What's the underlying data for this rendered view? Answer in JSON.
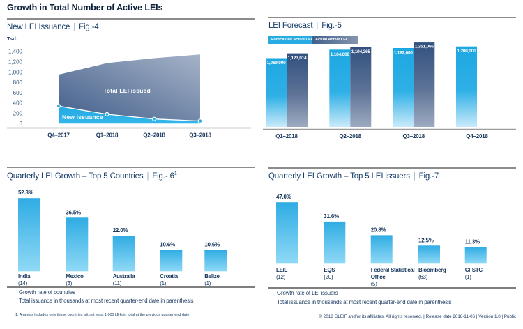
{
  "page_title": "Growth in Total Number of Active LEIs",
  "footer_text": "© 2018 GLEIF and/or its affiliates. All rights reserved. | Release date 2018-11-06 | Version 1.0 | Public",
  "colors": {
    "accent_cyan": "#29ABE2",
    "dark_navy_bar": "#31507E",
    "text_navy": "#16365C",
    "divider_gray": "#8C8C8C"
  },
  "chart_data": [
    {
      "id": "fig4",
      "type": "area",
      "title": "New LEI Issuance",
      "sep": "|",
      "fig": "Fig.-4",
      "ylabel": "Tsd.",
      "ylim": [
        0,
        1400
      ],
      "y_ticks": [
        "1,400",
        "1,200",
        "1,000",
        "800",
        "600",
        "400",
        "200",
        "0"
      ],
      "x": [
        "Q4–2017",
        "Q1–2018",
        "Q2–2018",
        "Q3–2018"
      ],
      "series": [
        {
          "name": "Total LEI issued",
          "values": [
            950,
            1175,
            1270,
            1340
          ]
        },
        {
          "name": "New issuance",
          "values": [
            340,
            180,
            90,
            50
          ]
        }
      ],
      "grid": false,
      "unit_note": "values in thousands (Tsd.)"
    },
    {
      "id": "fig5",
      "type": "bar",
      "title": "LEI Forecast",
      "sep": "|",
      "fig": "Fig.-5",
      "x": [
        "Q1–2018",
        "Q2–2018",
        "Q3–2018",
        "Q4–2018"
      ],
      "legend": [
        "Forecasted Active LEI",
        "Actual Active LEI"
      ],
      "series": [
        {
          "name": "Forecasted Active LEI",
          "values": [
            1069000,
            1164000,
            1182000,
            1200000
          ],
          "labels": [
            "1,069,000",
            "1,164,000",
            "1,182,000",
            "1,200,000"
          ]
        },
        {
          "name": "Actual Active LEI",
          "values": [
            1123014,
            1194265,
            1251066,
            null
          ],
          "labels": [
            "1,123,014",
            "1,194,265",
            "1,251,066",
            null
          ]
        }
      ],
      "grid": false
    },
    {
      "id": "fig6",
      "type": "bar",
      "title": "Quarterly LEI Growth – Top 5 Countries",
      "sep": "|",
      "fig": "Fig.- 6",
      "fig_sup": "1",
      "categories": [
        "India",
        "Mexico",
        "Australia",
        "Croatia",
        "Belize"
      ],
      "counts": [
        "(14)",
        "(3)",
        "(11)",
        "(1)",
        "(1)"
      ],
      "values": [
        52.3,
        36.5,
        22.0,
        10.6,
        10.6
      ],
      "value_labels": [
        "52.3%",
        "36.5%",
        "22.0%",
        "10.6%",
        "10.6%"
      ],
      "caption1": "Growth rate of countries",
      "caption2": "Total issuance in thousands at most recent quarter-end date in parenthesis",
      "footnote": "1. Analysis includes only those countries with at least 1,000 LEIs in total at the previous quarter-end date",
      "grid": false
    },
    {
      "id": "fig7",
      "type": "bar",
      "title": "Quarterly LEI Growth – Top 5 LEI issuers",
      "sep": "|",
      "fig": "Fig.-7",
      "categories": [
        "LEIL",
        "EQS",
        "Federal Statistical Office",
        "Bloomberg",
        "CFSTC"
      ],
      "counts": [
        "(12)",
        "(20)",
        "(5)",
        "(63)",
        "(1)"
      ],
      "values": [
        47.0,
        31.6,
        20.8,
        12.5,
        11.3
      ],
      "value_labels": [
        "47.0%",
        "31.6%",
        "20.8%",
        "12.5%",
        "11.3%"
      ],
      "caption1": "Growth rate of LEI issuers",
      "caption2": "Total issuance in thousands at most recent quarter-end date in parenthesis",
      "grid": false
    }
  ]
}
